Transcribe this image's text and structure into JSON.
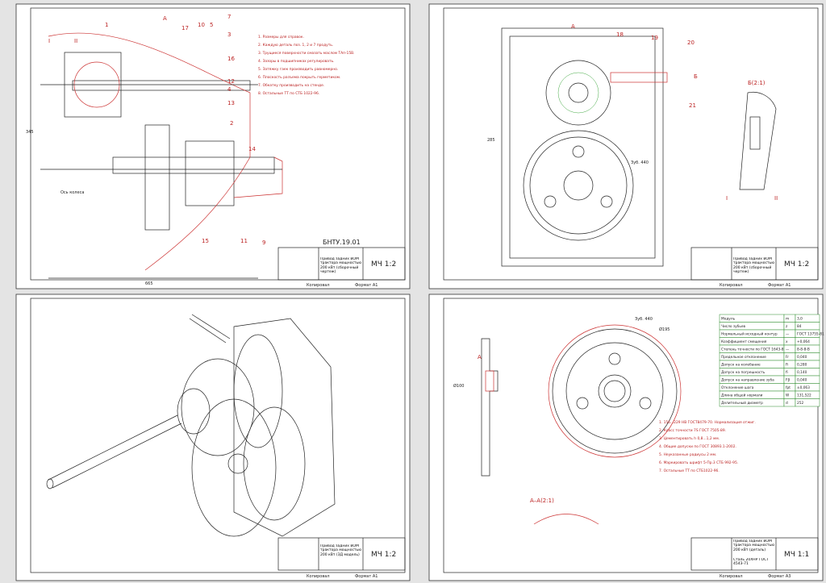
{
  "sheets": [
    {
      "notes": [
        "1. Размеры для справок.",
        "2. Каждую деталь поз. 1, 2 и 7 продуть.",
        "3. Трущиеся поверхности смазать маслом ТАп-15В.",
        "4. Зазоры в подшипниках регулировать.",
        "5. Затяжку гаек производить равномерно.",
        "6. Плоскость разъема покрыть герметиком.",
        "7. Обкатку производить на стенде.",
        "8. Остальные ТТ по СТБ 1022-96."
      ],
      "position_labels": [
        "1",
        "17",
        "10",
        "5",
        "7",
        "3",
        "16",
        "12",
        "4",
        "13",
        "2",
        "14",
        "9",
        "11",
        "15",
        "А",
        "II",
        "I"
      ],
      "dimension_labels": [
        "Ось колеса",
        "665",
        "345"
      ],
      "title_block": {
        "code": "БНТУ.19.01",
        "name": "Привод задних ВОМ трактора мощностью 200 кВт (сборочный чертеж)",
        "stamp": "МЧ 1:2"
      },
      "footer": [
        "Копировал",
        "Формат А1"
      ]
    },
    {
      "position_labels": [
        "18",
        "19",
        "20",
        "21",
        "А",
        "Б",
        "Б(2:1)",
        "I",
        "II"
      ],
      "dimension_labels": [
        "Зуб. 440",
        "285"
      ],
      "title_block": {
        "name": "Привод задних ВОМ трактора мощностью 200 кВт (сборочный чертеж)",
        "stamp": "МЧ 1:2"
      },
      "footer": [
        "Копировал",
        "Формат А1"
      ]
    },
    {
      "title_block": {
        "name": "Привод задних ВОМ трактора мощностью 200 кВт (3Д модель)",
        "stamp": "МЧ 1:2"
      },
      "footer": [
        "Копировал",
        "Формат А1"
      ]
    },
    {
      "parameters": [
        [
          "Модуль",
          "m",
          "3,0"
        ],
        [
          "Число зубьев",
          "z",
          "84"
        ],
        [
          "Нормальный исходный контур",
          "—",
          "ГОСТ 13755-81"
        ],
        [
          "Коэффициент смещения",
          "x",
          "+0,064"
        ],
        [
          "Степень точности по ГОСТ 1643-81",
          "—",
          "8-8-8-В"
        ],
        [
          "Предельное отклонение",
          "Fr",
          "0,040"
        ],
        [
          "Допуск на колебание",
          "Fi",
          "0,280"
        ],
        [
          "Допуск на погрешность",
          "fi",
          "0,140"
        ],
        [
          "Допуск на направление зуба",
          "Fβ",
          "0,040"
        ],
        [
          "Отклонение шага",
          "fpt",
          "±0,063"
        ],
        [
          "Длина общей нормали",
          "W",
          "131,522"
        ],
        [
          "Делительный диаметр",
          "d",
          "252"
        ]
      ],
      "notes": [
        "1. 156...229 НВ ГОСТ8479-70. Нормализация отжиг.",
        "2. Класс точности 7S ГОСТ 7505-89.",
        "3. Цементировать h 0,8...1,2 мм.",
        "4. Общие допуски по ГОСТ 30893.1-2002.",
        "5. Неуказанные радиусы 2 мм.",
        "6. Маркировать шрифт 5-Пр.3 СТБ 992-95.",
        "7. Остальные ТТ по СТБ1022-96."
      ],
      "labels": [
        "А",
        "А–А(2:1)",
        "Зуб. 440",
        "Ø195",
        "Ø100"
      ],
      "title_block": {
        "name": "Привод задних ВОМ трактора мощностью 200 кВт (деталь)",
        "material": "Сталь 20ХНР ГОСТ 4543-71",
        "stamp": "МЧ 1:1"
      },
      "footer": [
        "Копировал",
        "Формат А3"
      ]
    }
  ]
}
